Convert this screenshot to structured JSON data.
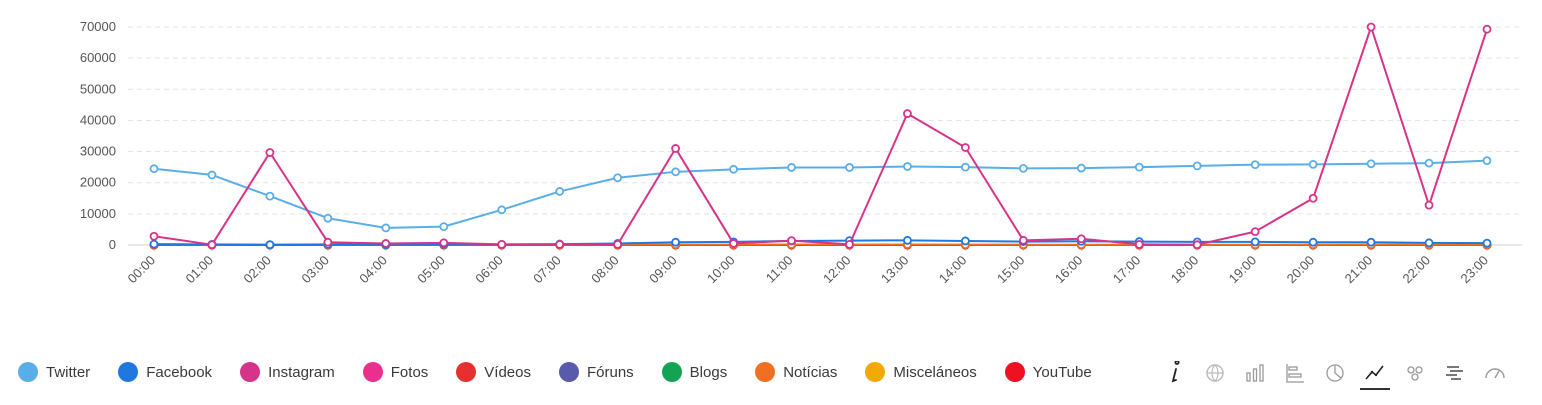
{
  "chart_data": {
    "type": "line",
    "title": "",
    "xlabel": "",
    "ylabel": "",
    "x": [
      "00:00",
      "01:00",
      "02:00",
      "03:00",
      "04:00",
      "05:00",
      "06:00",
      "07:00",
      "08:00",
      "09:00",
      "10:00",
      "11:00",
      "12:00",
      "13:00",
      "14:00",
      "15:00",
      "16:00",
      "17:00",
      "18:00",
      "19:00",
      "20:00",
      "21:00",
      "22:00",
      "23:00"
    ],
    "ylim": [
      0,
      70000
    ],
    "yticks": [
      0,
      10000,
      20000,
      30000,
      40000,
      50000,
      60000,
      70000
    ],
    "grid": true,
    "legend_position": "bottom-left",
    "series": [
      {
        "name": "Twitter",
        "color": "#5aaee8",
        "values": [
          24500,
          22500,
          15700,
          8600,
          5500,
          5900,
          11300,
          17200,
          21600,
          23500,
          24300,
          24900,
          24900,
          25200,
          25000,
          24600,
          24700,
          25000,
          25400,
          25800,
          25900,
          26100,
          26300,
          27100
        ]
      },
      {
        "name": "Facebook",
        "color": "#1f78e0",
        "values": [
          300,
          200,
          100,
          200,
          100,
          200,
          200,
          300,
          500,
          900,
          1000,
          1300,
          1400,
          1500,
          1300,
          1100,
          1200,
          1100,
          1000,
          1000,
          900,
          900,
          700,
          600
        ]
      },
      {
        "name": "Instagram",
        "color": "#d6338a",
        "values": [
          2800,
          100,
          29700,
          900,
          500,
          700,
          200,
          200,
          200,
          31000,
          500,
          1400,
          200,
          42200,
          31300,
          1500,
          2000,
          200,
          100,
          4300,
          15000,
          70000,
          12800,
          69300
        ]
      },
      {
        "name": "Fotos",
        "color": "#e8308c",
        "values": [
          0,
          0,
          0,
          0,
          0,
          0,
          0,
          0,
          0,
          0,
          0,
          0,
          0,
          0,
          0,
          0,
          0,
          0,
          0,
          0,
          0,
          0,
          0,
          0
        ]
      },
      {
        "name": "Vídeos",
        "color": "#e53030",
        "values": [
          0,
          0,
          0,
          0,
          0,
          0,
          0,
          0,
          0,
          0,
          0,
          0,
          0,
          0,
          0,
          0,
          0,
          0,
          0,
          0,
          0,
          0,
          0,
          0
        ]
      },
      {
        "name": "Fóruns",
        "color": "#5a5aad",
        "values": [
          0,
          0,
          0,
          0,
          0,
          0,
          0,
          0,
          0,
          0,
          0,
          0,
          0,
          0,
          0,
          0,
          0,
          0,
          0,
          0,
          0,
          0,
          0,
          0
        ]
      },
      {
        "name": "Blogs",
        "color": "#13a352",
        "values": [
          0,
          0,
          0,
          0,
          0,
          0,
          0,
          0,
          0,
          0,
          0,
          0,
          0,
          0,
          0,
          0,
          0,
          0,
          0,
          0,
          0,
          0,
          0,
          0
        ]
      },
      {
        "name": "Notícias",
        "color": "#f07022",
        "values": [
          150,
          100,
          80,
          100,
          80,
          100,
          80,
          100,
          100,
          120,
          120,
          150,
          120,
          150,
          120,
          100,
          100,
          100,
          80,
          100,
          100,
          120,
          100,
          100
        ]
      },
      {
        "name": "Misceláneos",
        "color": "#f2a900",
        "values": [
          0,
          0,
          0,
          0,
          0,
          0,
          0,
          0,
          0,
          0,
          0,
          0,
          0,
          0,
          0,
          0,
          0,
          0,
          0,
          0,
          0,
          0,
          0,
          0
        ]
      },
      {
        "name": "YouTube",
        "color": "#ee1122",
        "values": [
          0,
          0,
          0,
          0,
          0,
          0,
          0,
          0,
          0,
          0,
          0,
          0,
          0,
          0,
          0,
          0,
          0,
          0,
          0,
          0,
          0,
          0,
          0,
          0
        ]
      }
    ]
  },
  "legend": {
    "items": [
      {
        "label": "Twitter",
        "color": "#5aaee8"
      },
      {
        "label": "Facebook",
        "color": "#1f78e0"
      },
      {
        "label": "Instagram",
        "color": "#d6338a"
      },
      {
        "label": "Fotos",
        "color": "#e8308c"
      },
      {
        "label": "Vídeos",
        "color": "#e53030"
      },
      {
        "label": "Fóruns",
        "color": "#5a5aad"
      },
      {
        "label": "Blogs",
        "color": "#13a352"
      },
      {
        "label": "Notícias",
        "color": "#f07022"
      },
      {
        "label": "Misceláneos",
        "color": "#f2a900"
      },
      {
        "label": "YouTube",
        "color": "#ee1122"
      }
    ]
  },
  "toolbar": {
    "icons": [
      "info-icon",
      "world-map-icon",
      "bar-chart-icon",
      "horizontal-bar-icon",
      "pie-chart-icon",
      "line-chart-icon",
      "bubble-icon",
      "wordcloud-icon",
      "gauge-icon"
    ],
    "active": "line-chart-icon"
  }
}
